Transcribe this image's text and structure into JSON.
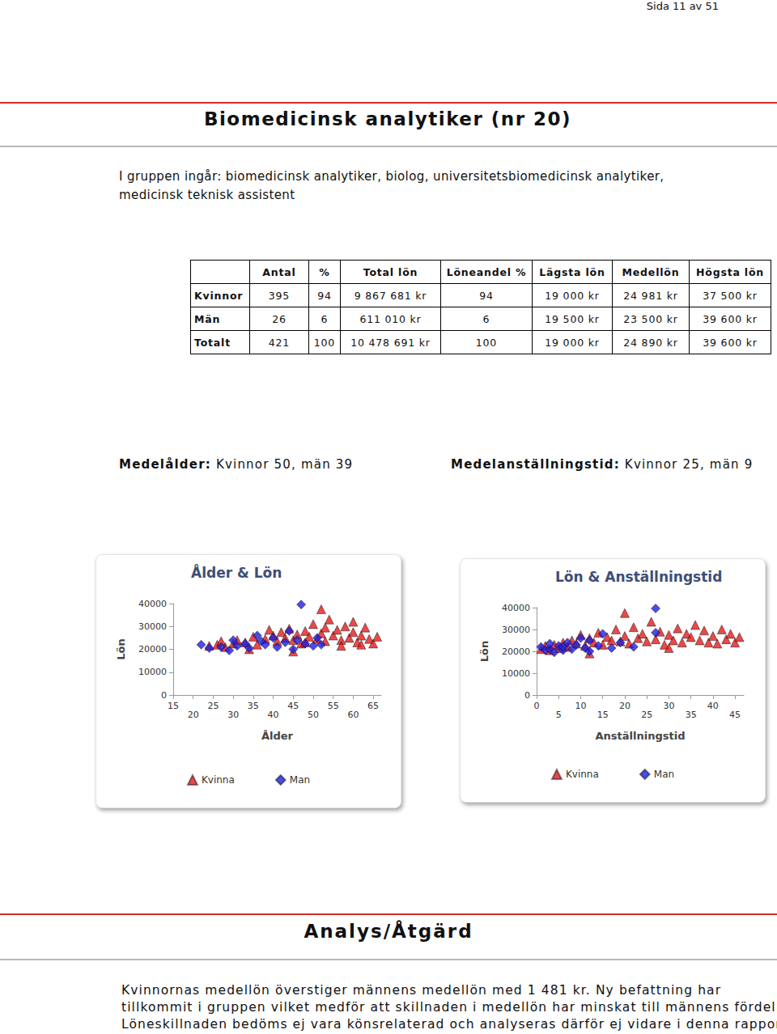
{
  "header": {
    "page": "Sida 11 av 51"
  },
  "title": "Biomedicinsk analytiker (nr 20)",
  "description": [
    "I gruppen ingår: biomedicinsk analytiker, biolog, universitetsbiomedicinsk analytiker,",
    "medicinsk teknisk assistent"
  ],
  "table": {
    "columns": [
      "Antal",
      "%",
      "Total lön",
      "Löneandel %",
      "Lägsta lön",
      "Medellön",
      "Högsta lön"
    ],
    "rows": [
      [
        "Kvinnor",
        "395",
        "94",
        "9 867 681 kr",
        "94",
        "19 000 kr",
        "24 981 kr",
        "37 500 kr"
      ],
      [
        "Män",
        "26",
        "6",
        "611 010 kr",
        "6",
        "19 500 kr",
        "23 500 kr",
        "39 600 kr"
      ],
      [
        "Totalt",
        "421",
        "100",
        "10 478 691 kr",
        "100",
        "19 000 kr",
        "24 890 kr",
        "39 600 kr"
      ]
    ]
  },
  "stats": [
    {
      "label": "Medelålder:",
      "text": "Kvinnor 50, män 39"
    },
    {
      "label": "Medelanställningstid:",
      "text": "Kvinnor 25, män 9"
    }
  ],
  "chart_data": [
    {
      "type": "scatter",
      "title": "Ålder & Lön",
      "x_label": "Ålder",
      "y_label": "Lön",
      "xlim": [
        15,
        67
      ],
      "xticks": [
        15,
        20,
        25,
        30,
        35,
        40,
        45,
        50,
        55,
        60,
        65
      ],
      "ylim": [
        0,
        40000
      ],
      "yticks": [
        0,
        10000,
        20000,
        30000,
        40000
      ],
      "grid": false,
      "legend": "bottom",
      "series": [
        {
          "name": "Kvinna",
          "color": "#e31b1b",
          "marker": "triangle",
          "x": [
            24,
            26,
            28,
            30,
            31,
            33,
            35,
            36,
            38,
            40,
            41,
            42,
            43,
            44,
            45,
            46,
            47,
            48,
            49,
            50,
            51,
            52,
            53,
            54,
            55,
            56,
            57,
            58,
            59,
            60,
            61,
            62,
            63,
            64,
            65,
            66,
            52,
            45,
            39,
            57,
            60,
            48,
            53,
            62,
            34,
            27
          ],
          "values": [
            21500,
            22000,
            21000,
            22500,
            24000,
            23000,
            25500,
            22000,
            24500,
            26000,
            23500,
            27500,
            25000,
            29000,
            24000,
            26500,
            22500,
            28000,
            25500,
            31000,
            24500,
            27000,
            23500,
            33000,
            26000,
            28500,
            24000,
            30000,
            25000,
            27500,
            23000,
            26000,
            29500,
            24500,
            22500,
            25500,
            37500,
            19000,
            28500,
            21500,
            32000,
            23000,
            29500,
            22000,
            20000,
            23500
          ]
        },
        {
          "name": "Man",
          "color": "#1f1fe0",
          "marker": "diamond",
          "x": [
            22,
            24,
            27,
            29,
            31,
            33,
            34,
            36,
            38,
            40,
            41,
            43,
            44,
            46,
            47,
            48,
            50,
            51,
            52,
            45,
            37,
            30
          ],
          "values": [
            22000,
            20500,
            21000,
            19500,
            21500,
            22500,
            20500,
            26000,
            22000,
            25000,
            21000,
            23000,
            28000,
            24000,
            39600,
            22500,
            21500,
            25000,
            22000,
            20000,
            23500,
            24000
          ]
        }
      ]
    },
    {
      "type": "scatter",
      "title": "Lön & Anställningstid",
      "x_label": "Anställningstid",
      "y_label": "Lön",
      "xlim": [
        0,
        47
      ],
      "xticks": [
        0,
        5,
        10,
        15,
        20,
        25,
        30,
        35,
        40,
        45
      ],
      "ylim": [
        0,
        40000
      ],
      "yticks": [
        0,
        10000,
        20000,
        30000,
        40000
      ],
      "grid": false,
      "legend": "bottom",
      "series": [
        {
          "name": "Kvinna",
          "color": "#e31b1b",
          "marker": "triangle",
          "x": [
            1,
            2,
            3,
            4,
            5,
            6,
            7,
            8,
            9,
            10,
            11,
            12,
            13,
            14,
            15,
            16,
            17,
            18,
            19,
            20,
            21,
            22,
            23,
            24,
            25,
            26,
            27,
            28,
            29,
            30,
            31,
            32,
            33,
            34,
            35,
            36,
            37,
            38,
            39,
            40,
            41,
            42,
            43,
            44,
            45,
            46,
            20,
            12,
            30
          ],
          "values": [
            21000,
            22500,
            20500,
            23000,
            21500,
            24000,
            22000,
            25000,
            23500,
            27500,
            22500,
            26000,
            24000,
            28500,
            23000,
            26500,
            25000,
            30000,
            24500,
            27000,
            23500,
            31000,
            26000,
            28000,
            24500,
            33500,
            25500,
            29000,
            23000,
            27500,
            25000,
            30500,
            24000,
            28000,
            26500,
            32000,
            25000,
            29500,
            24000,
            27000,
            23500,
            30000,
            25500,
            28000,
            24000,
            26500,
            37500,
            19000,
            21500
          ]
        },
        {
          "name": "Man",
          "color": "#1f1fe0",
          "marker": "diamond",
          "x": [
            1,
            2,
            3,
            4,
            5,
            6,
            7,
            8,
            9,
            10,
            11,
            12,
            14,
            15,
            17,
            19,
            22,
            27,
            27,
            3,
            6,
            12
          ],
          "values": [
            22000,
            20500,
            21000,
            19500,
            22500,
            20500,
            24000,
            21000,
            23000,
            26000,
            21500,
            25000,
            22500,
            28000,
            21500,
            24000,
            22000,
            39600,
            28500,
            23500,
            22000,
            20000
          ]
        }
      ]
    }
  ],
  "analysis": {
    "heading": "Analys/Åtgärd",
    "paragraph": [
      "Kvinnornas medellön överstiger männens medellön med 1 481 kr. Ny befattning har",
      "tillkommit i gruppen vilket medför att skillnaden i medellön har minskat till männens fördel.",
      "Löneskillnaden bedöms ej vara könsrelaterad och analyseras därför ej vidare i denna rapport."
    ]
  }
}
